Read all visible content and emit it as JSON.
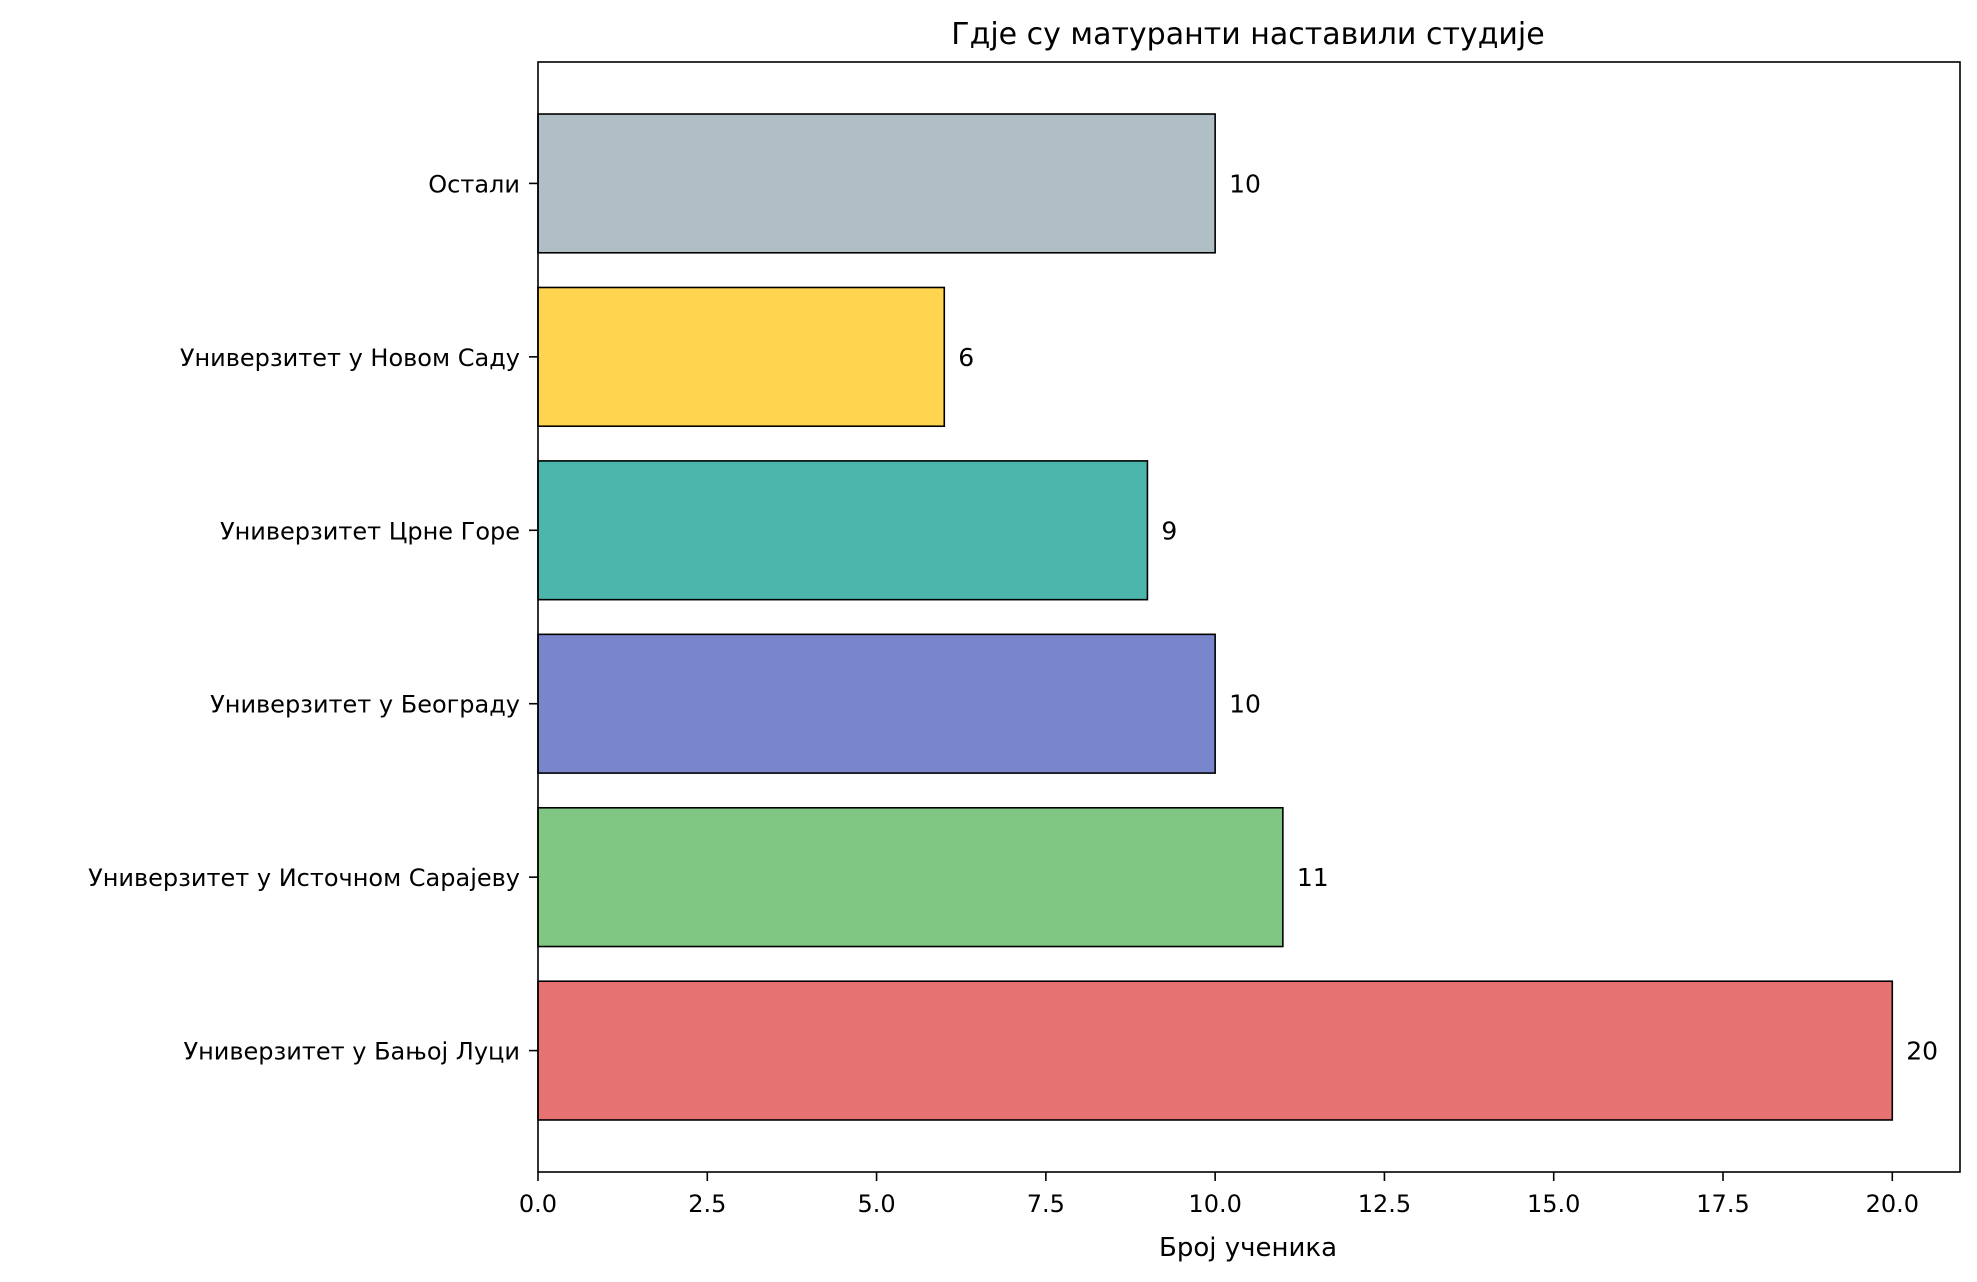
{
  "chart_data": {
    "type": "bar",
    "orientation": "horizontal",
    "title": "Гдје су матуранти наставили студије",
    "xlabel": "Број ученика",
    "ylabel": "",
    "categories": [
      "Универзитет у Бањој Луци",
      "Универзитет у Источном Сарајеву",
      "Универзитет у Београду",
      "Универзитет Црне Горе",
      "Универзитет у Новом Саду",
      "Остали"
    ],
    "values": [
      20,
      11,
      10,
      9,
      6,
      10
    ],
    "value_labels": [
      "20",
      "11",
      "10",
      "9",
      "6",
      "10"
    ],
    "colors": [
      "#e77272",
      "#81c784",
      "#7986cb",
      "#4db6ac",
      "#ffd54f",
      "#b0bec5"
    ],
    "edge_color": "#000000",
    "xlim": [
      0,
      21
    ],
    "xticks": [
      0,
      2.5,
      5,
      7.5,
      10,
      12.5,
      15,
      17.5,
      20
    ],
    "xtick_labels": [
      "0.0",
      "2.5",
      "5.0",
      "7.5",
      "10.0",
      "12.5",
      "15.0",
      "17.5",
      "20.0"
    ],
    "grid": false,
    "legend": "none"
  }
}
